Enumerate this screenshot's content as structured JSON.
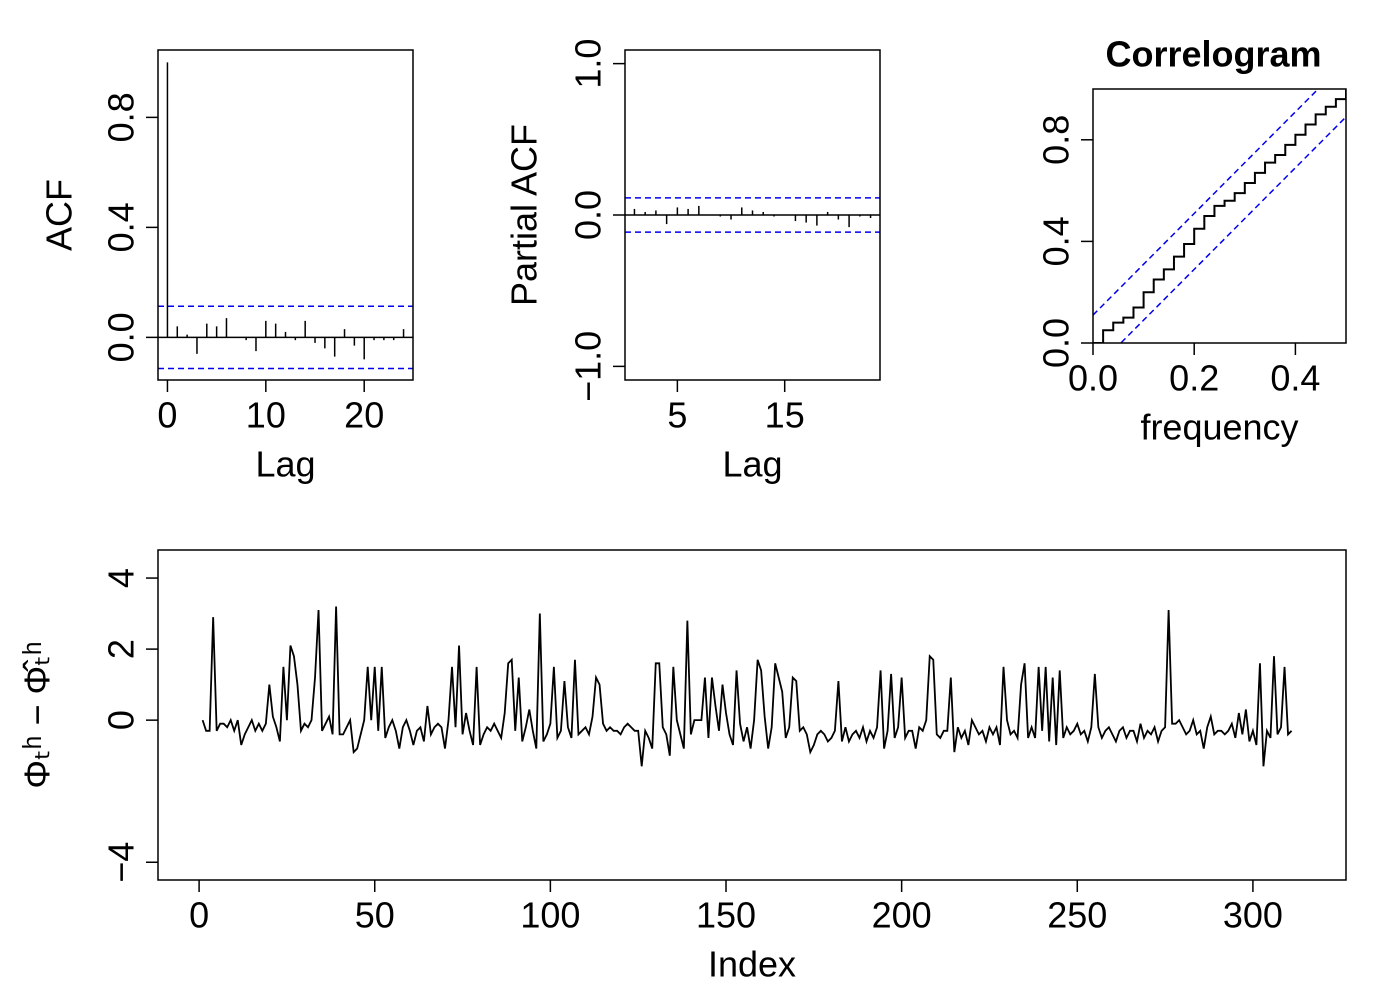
{
  "chart_data": [
    {
      "type": "acf",
      "ylabel": "ACF",
      "xlabel": "Lag",
      "x": [
        0,
        1,
        2,
        3,
        4,
        5,
        6,
        7,
        8,
        9,
        10,
        11,
        12,
        13,
        14,
        15,
        16,
        17,
        18,
        19,
        20,
        21,
        22,
        23,
        24
      ],
      "values": [
        1.0,
        0.04,
        0.01,
        -0.06,
        0.05,
        0.04,
        0.07,
        0.0,
        -0.01,
        -0.05,
        0.06,
        0.05,
        0.02,
        -0.01,
        0.06,
        -0.02,
        -0.04,
        -0.07,
        0.03,
        -0.03,
        -0.08,
        -0.01,
        -0.01,
        -0.01,
        0.03
      ],
      "ci": 0.113,
      "ci_color": "#0000ee",
      "xlim": [
        -0.96,
        24.96
      ],
      "ylim": [
        -0.155,
        1.045
      ],
      "xticks": [
        0,
        10,
        20
      ],
      "yticks": [
        {
          "value": 0,
          "label": "0.0"
        },
        {
          "value": 0.4,
          "label": "0.4"
        },
        {
          "value": 0.8,
          "label": "0.8"
        }
      ]
    },
    {
      "type": "acf",
      "ylabel": "Partial ACF",
      "xlabel": "Lag",
      "x": [
        1,
        2,
        3,
        4,
        5,
        6,
        7,
        8,
        9,
        10,
        11,
        12,
        13,
        14,
        15,
        16,
        17,
        18,
        19,
        20,
        21,
        22,
        23
      ],
      "values": [
        0.04,
        0.02,
        0.03,
        -0.06,
        0.05,
        0.04,
        0.06,
        0.0,
        -0.01,
        -0.03,
        0.05,
        0.03,
        0.02,
        -0.01,
        0.0,
        -0.04,
        -0.05,
        -0.07,
        0.02,
        -0.03,
        -0.08,
        -0.01,
        -0.02
      ],
      "ci": 0.113,
      "ci_color": "#0000ee",
      "xlim": [
        0.12,
        23.88
      ],
      "ylim": [
        -1.09,
        1.09
      ],
      "xticks": [
        5,
        15
      ],
      "yticks": [
        {
          "value": -1,
          "label": "−1.0"
        },
        {
          "value": 0,
          "label": "0.0"
        },
        {
          "value": 1,
          "label": "1.0"
        }
      ]
    },
    {
      "type": "cpgram",
      "title": "Correlogram",
      "xlabel": "frequency",
      "x": [
        0,
        0.02,
        0.04,
        0.06,
        0.08,
        0.1,
        0.12,
        0.14,
        0.16,
        0.18,
        0.2,
        0.22,
        0.24,
        0.26,
        0.28,
        0.3,
        0.32,
        0.34,
        0.36,
        0.38,
        0.4,
        0.42,
        0.44,
        0.46,
        0.48,
        0.5
      ],
      "y": [
        0,
        0.05,
        0.08,
        0.1,
        0.14,
        0.2,
        0.25,
        0.29,
        0.34,
        0.39,
        0.45,
        0.5,
        0.54,
        0.56,
        0.59,
        0.63,
        0.67,
        0.71,
        0.74,
        0.78,
        0.82,
        0.86,
        0.9,
        0.93,
        0.96,
        1.0
      ],
      "band": 0.11,
      "band_color": "#0000ee",
      "xlim": [
        0,
        0.5
      ],
      "ylim": [
        0,
        1
      ],
      "xticks": [
        {
          "value": 0,
          "label": "0.0"
        },
        {
          "value": 0.2,
          "label": "0.2"
        },
        {
          "value": 0.4,
          "label": "0.4"
        }
      ],
      "yticks": [
        {
          "value": 0,
          "label": "0.0"
        },
        {
          "value": 0.4,
          "label": "0.4"
        },
        {
          "value": 0.8,
          "label": "0.8"
        }
      ]
    },
    {
      "type": "line",
      "ylabel": "Φₜʰ − Φ̂ₜʰ",
      "xlabel": "Index",
      "values": [
        0.0,
        -0.3,
        -0.3,
        2.9,
        -0.3,
        -0.1,
        -0.1,
        -0.2,
        0.0,
        -0.3,
        0.0,
        -0.7,
        -0.4,
        -0.2,
        0.0,
        -0.3,
        -0.1,
        -0.3,
        -0.1,
        1.0,
        0.1,
        -0.2,
        -0.6,
        1.5,
        0.0,
        2.1,
        1.8,
        1.0,
        -0.3,
        -0.1,
        -0.2,
        0.0,
        1.2,
        3.1,
        -0.3,
        -0.1,
        0.1,
        -0.4,
        3.2,
        -0.4,
        -0.4,
        -0.2,
        0.0,
        -0.9,
        -0.8,
        -0.4,
        0.0,
        1.5,
        0.0,
        1.5,
        -0.3,
        1.5,
        -0.5,
        -0.2,
        0.0,
        -0.3,
        -0.8,
        -0.2,
        0.0,
        -0.3,
        -0.7,
        -0.3,
        -0.2,
        -0.6,
        0.4,
        -0.4,
        -0.2,
        -0.1,
        -0.2,
        -0.8,
        0.0,
        1.5,
        -0.2,
        2.1,
        -0.4,
        0.2,
        -0.3,
        -0.7,
        1.5,
        -0.7,
        -0.4,
        -0.2,
        -0.3,
        -0.1,
        -0.3,
        -0.5,
        0.2,
        1.6,
        1.7,
        -0.3,
        1.2,
        -0.6,
        -0.2,
        0.3,
        -0.3,
        -0.8,
        3.0,
        -0.6,
        -0.4,
        -0.1,
        1.5,
        -0.5,
        -0.3,
        1.1,
        -0.2,
        -0.5,
        1.7,
        -0.4,
        -0.3,
        -0.2,
        -0.4,
        0.1,
        1.2,
        1.0,
        -0.1,
        -0.3,
        -0.2,
        -0.3,
        -0.3,
        -0.4,
        -0.2,
        -0.1,
        -0.2,
        -0.3,
        -0.3,
        -1.3,
        -0.3,
        -0.5,
        -0.8,
        1.6,
        1.6,
        -0.2,
        -0.4,
        -1.0,
        1.5,
        0.0,
        -0.4,
        -0.8,
        2.8,
        -0.4,
        0.0,
        0.0,
        0.0,
        1.2,
        -0.5,
        1.2,
        0.4,
        -0.3,
        1.0,
        0.2,
        -0.4,
        -0.7,
        1.4,
        -0.1,
        -0.6,
        -0.2,
        -0.8,
        0.0,
        1.7,
        1.4,
        0.1,
        -0.8,
        -0.2,
        1.6,
        1.2,
        0.8,
        -0.5,
        -0.2,
        1.2,
        1.1,
        -0.3,
        -0.2,
        -0.4,
        -0.9,
        -0.7,
        -0.4,
        -0.3,
        -0.4,
        -0.6,
        -0.5,
        -0.3,
        1.1,
        -0.6,
        -0.2,
        -0.6,
        -0.4,
        -0.3,
        -0.5,
        -0.2,
        -0.6,
        -0.3,
        -0.5,
        -0.2,
        1.4,
        -0.8,
        -0.3,
        1.3,
        -0.5,
        -0.2,
        1.2,
        -0.5,
        -0.3,
        -0.3,
        -0.8,
        -0.2,
        -0.3,
        0.0,
        1.8,
        1.7,
        -0.4,
        -0.5,
        -0.3,
        -0.3,
        1.2,
        -0.9,
        -0.2,
        -0.5,
        -0.3,
        -0.7,
        0.0,
        -0.2,
        -0.4,
        -0.3,
        -0.6,
        -0.2,
        -0.4,
        -0.2,
        -0.7,
        1.5,
        0.0,
        -0.4,
        -0.3,
        -0.5,
        1.0,
        1.6,
        -0.5,
        -0.2,
        -0.5,
        1.5,
        -0.3,
        1.5,
        -0.6,
        1.2,
        -0.7,
        1.4,
        -0.5,
        -0.2,
        -0.4,
        -0.3,
        -0.1,
        -0.4,
        -0.3,
        -0.6,
        -0.2,
        1.3,
        -0.2,
        -0.5,
        -0.3,
        -0.2,
        -0.4,
        -0.6,
        -0.3,
        -0.2,
        -0.5,
        -0.3,
        -0.3,
        -0.6,
        -0.1,
        -0.5,
        -0.3,
        -0.4,
        -0.2,
        -0.6,
        -0.3,
        -0.2,
        3.1,
        -0.1,
        -0.1,
        0.0,
        -0.2,
        -0.4,
        -0.3,
        0.0,
        -0.4,
        -0.3,
        -0.8,
        -0.2,
        0.1,
        -0.4,
        -0.3,
        -0.3,
        -0.4,
        -0.3,
        -0.1,
        -0.5,
        0.2,
        -0.4,
        0.3,
        -0.6,
        -0.3,
        -0.7,
        1.6,
        -1.3,
        -0.3,
        -0.5,
        1.8,
        -0.4,
        -0.2,
        1.5,
        -0.4,
        -0.3
      ],
      "xlim": [
        -11.7,
        326.5
      ],
      "ylim": [
        -4.5,
        4.79
      ],
      "xticks": [
        0,
        50,
        100,
        150,
        200,
        250,
        300
      ],
      "yticks": [
        {
          "value": -4,
          "label": "−4"
        },
        0,
        2,
        4
      ]
    }
  ]
}
